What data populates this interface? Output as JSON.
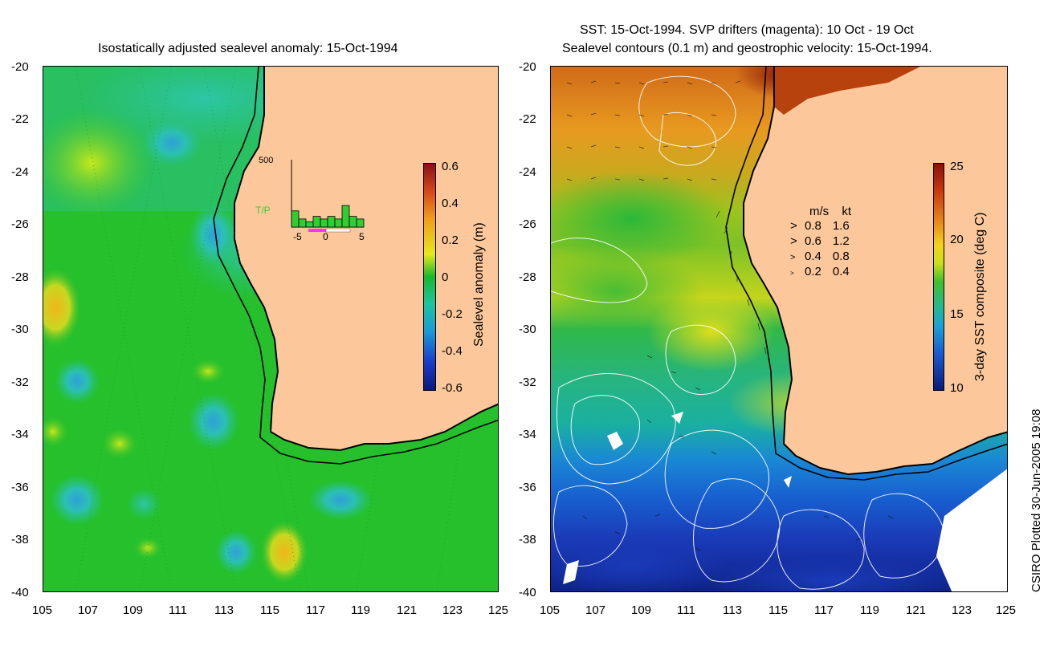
{
  "left_panel": {
    "title": "Isostatically adjusted sealevel anomaly: 15-Oct-1994",
    "y_ticks": [
      "-20",
      "-22",
      "-24",
      "-26",
      "-28",
      "-30",
      "-32",
      "-34",
      "-36",
      "-38",
      "-40"
    ],
    "x_ticks": [
      "105",
      "107",
      "109",
      "111",
      "113",
      "115",
      "117",
      "119",
      "121",
      "123",
      "125"
    ],
    "colorbar": {
      "label": "Sealevel anomaly (m)",
      "ticks": [
        "0.6",
        "0.4",
        "0.2",
        "0",
        "-0.2",
        "-0.4",
        "-0.6"
      ]
    },
    "inset": {
      "ymax_label": "500",
      "series_label": "T/P",
      "x_ticks": [
        "-5",
        "0",
        "5"
      ],
      "bar_values": [
        120,
        60,
        40,
        80,
        60,
        80,
        60,
        160,
        80,
        60
      ]
    },
    "colors": {
      "ocean": "#1fb92a",
      "land": "#fcc89b",
      "series": "#33cc33"
    }
  },
  "right_panel": {
    "title_line1": "SST: 15-Oct-1994. SVP drifters (magenta): 10 Oct - 19 Oct",
    "title_line2": "Sealevel contours (0.1 m) and geostrophic velocity: 15-Oct-1994.",
    "y_ticks": [
      "-20",
      "-22",
      "-24",
      "-26",
      "-28",
      "-30",
      "-32",
      "-34",
      "-36",
      "-38",
      "-40"
    ],
    "x_ticks": [
      "105",
      "107",
      "109",
      "111",
      "113",
      "115",
      "117",
      "119",
      "121",
      "123",
      "125"
    ],
    "colorbar": {
      "label": "3-day SST composite (deg C)",
      "ticks": [
        "25",
        "20",
        "15",
        "10"
      ]
    },
    "velocity_legend": {
      "header_ms": "m/s",
      "header_kt": "kt",
      "rows": [
        {
          "ms": "0.8",
          "kt": "1.6"
        },
        {
          "ms": "0.6",
          "kt": "1.2"
        },
        {
          "ms": "0.4",
          "kt": "0.8"
        },
        {
          "ms": "0.2",
          "kt": "0.4"
        }
      ]
    },
    "colors": {
      "land": "#fcc89b",
      "contour": "#ffffff"
    }
  },
  "credit": "CSIRO Plotted 30-Jun-2005 19:08"
}
